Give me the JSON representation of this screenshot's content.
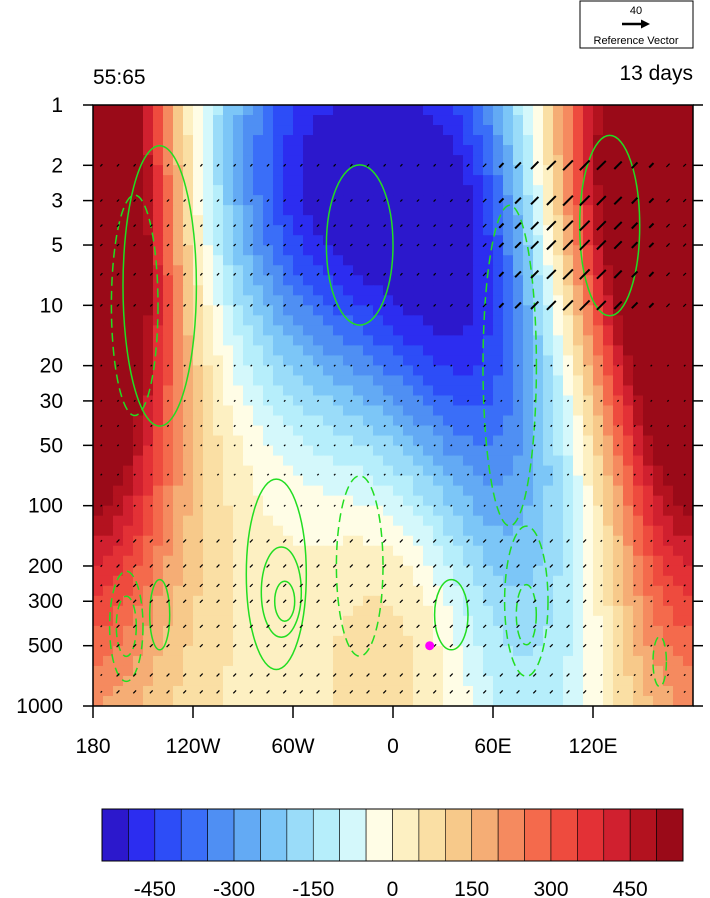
{
  "chart_data": {
    "type": "heatmap",
    "title_left": "55:65",
    "title_right": "13 days",
    "reference_vector": {
      "magnitude": "40",
      "label": "Reference Vector"
    },
    "x_ticks": [
      {
        "lon": -180,
        "label": "180"
      },
      {
        "lon": -120,
        "label": "120W"
      },
      {
        "lon": -60,
        "label": "60W"
      },
      {
        "lon": 0,
        "label": "0"
      },
      {
        "lon": 60,
        "label": "60E"
      },
      {
        "lon": 120,
        "label": "120E"
      }
    ],
    "xlim": [
      -180,
      180
    ],
    "y_scale": "log",
    "ylim": [
      1000,
      1
    ],
    "y_ticks": [
      {
        "p": 1,
        "label": "1"
      },
      {
        "p": 2,
        "label": "2"
      },
      {
        "p": 3,
        "label": "3"
      },
      {
        "p": 5,
        "label": "5"
      },
      {
        "p": 10,
        "label": "10"
      },
      {
        "p": 20,
        "label": "20"
      },
      {
        "p": 30,
        "label": "30"
      },
      {
        "p": 50,
        "label": "50"
      },
      {
        "p": 100,
        "label": "100"
      },
      {
        "p": 200,
        "label": "200"
      },
      {
        "p": 300,
        "label": "300"
      },
      {
        "p": 500,
        "label": "500"
      },
      {
        "p": 1000,
        "label": "1000"
      }
    ],
    "colorbar": {
      "levels": [
        -550,
        -500,
        -450,
        -400,
        -350,
        -300,
        -250,
        -200,
        -150,
        -100,
        -50,
        0,
        50,
        100,
        150,
        200,
        250,
        300,
        350,
        400,
        450,
        500,
        550
      ],
      "colors": [
        "#2c18cc",
        "#2c2df0",
        "#2d4df7",
        "#3a6ef8",
        "#4f8ff3",
        "#63aaf4",
        "#7cc6f7",
        "#9adcf9",
        "#b6eefb",
        "#d4f8fb",
        "#fffde6",
        "#fdf0c2",
        "#fadfa4",
        "#f7c98a",
        "#f5ad75",
        "#f58a5f",
        "#f46a4c",
        "#ee4b3e",
        "#e33136",
        "#d0202f",
        "#b3121f",
        "#9a0a18"
      ],
      "tick_labels": [
        {
          "value": -450,
          "label": "-450"
        },
        {
          "value": -300,
          "label": "-300"
        },
        {
          "value": -150,
          "label": "-150"
        },
        {
          "value": 0,
          "label": "0"
        },
        {
          "value": 150,
          "label": "150"
        },
        {
          "value": 300,
          "label": "300"
        },
        {
          "value": 450,
          "label": "450"
        }
      ]
    },
    "anomaly_centers": [
      {
        "lon": -170,
        "p": 4,
        "value": 380,
        "sx": 28,
        "sy": 1.1
      },
      {
        "lon": -160,
        "p": 25,
        "value": 150,
        "sx": 40,
        "sy": 1.2
      },
      {
        "lon": 135,
        "p": 2,
        "value": 520,
        "sx": 42,
        "sy": 0.8
      },
      {
        "lon": 165,
        "p": 15,
        "value": 280,
        "sx": 30,
        "sy": 1.4
      },
      {
        "lon": 10,
        "p": 3,
        "value": -380,
        "sx": 55,
        "sy": 0.9
      },
      {
        "lon": -60,
        "p": 2,
        "value": -320,
        "sx": 45,
        "sy": 0.7
      },
      {
        "lon": 50,
        "p": 15,
        "value": -250,
        "sx": 40,
        "sy": 1.1
      },
      {
        "lon": 90,
        "p": 100,
        "value": -120,
        "sx": 35,
        "sy": 1.4
      },
      {
        "lon": 10,
        "p": 300,
        "value": 140,
        "sx": 35,
        "sy": 0.7
      },
      {
        "lon": -100,
        "p": 300,
        "value": 25,
        "sx": 60,
        "sy": 1.3
      }
    ],
    "green_contours": [
      {
        "dashed": false,
        "lon": -140,
        "p": 350,
        "rx": 6,
        "ry": 0.35
      },
      {
        "dashed": true,
        "lon": -160,
        "p": 400,
        "rx": 6,
        "ry": 0.3
      },
      {
        "dashed": true,
        "lon": -160,
        "p": 400,
        "rx": 10,
        "ry": 0.55
      },
      {
        "dashed": false,
        "lon": -65,
        "p": 300,
        "rx": 6,
        "ry": 0.2
      },
      {
        "dashed": false,
        "lon": -67,
        "p": 270,
        "rx": 12,
        "ry": 0.45
      },
      {
        "dashed": false,
        "lon": -70,
        "p": 220,
        "rx": 18,
        "ry": 0.95
      },
      {
        "dashed": true,
        "lon": -20,
        "p": 200,
        "rx": 14,
        "ry": 0.9
      },
      {
        "dashed": false,
        "lon": 35,
        "p": 350,
        "rx": 10,
        "ry": 0.35
      },
      {
        "dashed": true,
        "lon": 80,
        "p": 350,
        "rx": 6,
        "ry": 0.3
      },
      {
        "dashed": true,
        "lon": 80,
        "p": 300,
        "rx": 13,
        "ry": 0.75
      },
      {
        "dashed": true,
        "lon": 160,
        "p": 600,
        "rx": 4,
        "ry": 0.25
      },
      {
        "dashed": false,
        "lon": -140,
        "p": 8,
        "rx": 22,
        "ry": 1.4
      },
      {
        "dashed": true,
        "lon": -155,
        "p": 10,
        "rx": 14,
        "ry": 1.1
      },
      {
        "dashed": false,
        "lon": 130,
        "p": 4,
        "rx": 18,
        "ry": 0.9
      },
      {
        "dashed": true,
        "lon": 70,
        "p": 20,
        "rx": 16,
        "ry": 1.6
      },
      {
        "dashed": false,
        "lon": -20,
        "p": 5,
        "rx": 20,
        "ry": 0.8
      }
    ],
    "marker": {
      "lon": 22,
      "p": 500,
      "color": "#ff00ff"
    }
  }
}
